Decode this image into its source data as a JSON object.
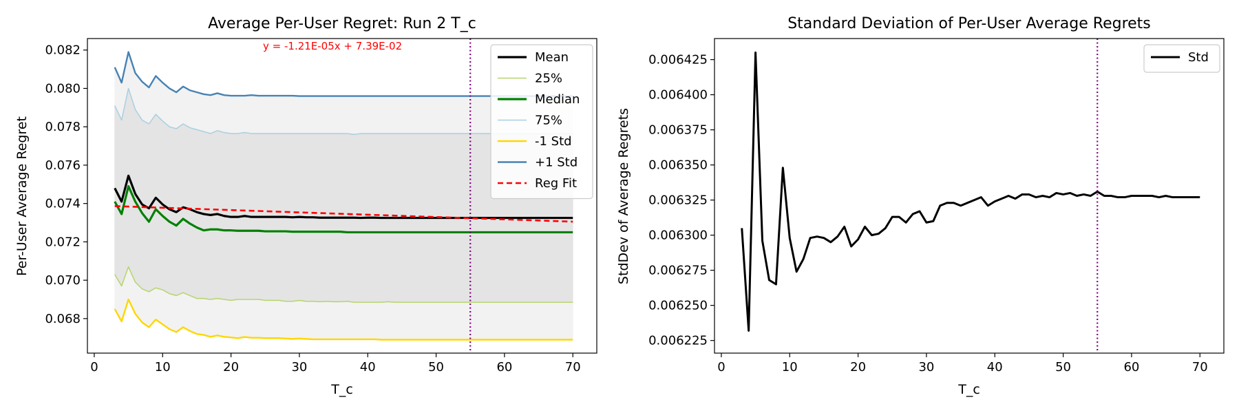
{
  "chart_data": [
    {
      "type": "line",
      "title": "Average Per-User Regret: Run 2 T_c",
      "xlabel": "T_c",
      "ylabel": "Per-User Average Regret",
      "xlim": [
        -1,
        73.5
      ],
      "ylim": [
        0.0662,
        0.0826
      ],
      "xticks": [
        0,
        10,
        20,
        30,
        40,
        50,
        60,
        70
      ],
      "yticks": [
        0.068,
        0.07,
        0.072,
        0.074,
        0.076,
        0.078,
        0.08,
        0.082
      ],
      "ytick_labels": [
        "0.068",
        "0.070",
        "0.072",
        "0.074",
        "0.076",
        "0.078",
        "0.080",
        "0.082"
      ],
      "annotation": "y = -1.21E-05x + 7.39E-02",
      "vline_x": 55,
      "vline_color": "#800080",
      "legend_position": "top-right",
      "x": [
        3,
        4,
        5,
        6,
        7,
        8,
        9,
        10,
        11,
        12,
        13,
        14,
        15,
        16,
        17,
        18,
        19,
        20,
        21,
        22,
        23,
        24,
        25,
        26,
        27,
        28,
        29,
        30,
        31,
        32,
        33,
        34,
        35,
        36,
        37,
        38,
        39,
        40,
        41,
        42,
        43,
        44,
        45,
        46,
        47,
        48,
        49,
        50,
        51,
        52,
        53,
        54,
        55,
        56,
        57,
        58,
        59,
        60,
        61,
        62,
        63,
        64,
        65,
        66,
        67,
        68,
        69,
        70
      ],
      "series": [
        {
          "name": "Mean",
          "color": "#000000",
          "width": 3.2,
          "dash": "",
          "values": [
            0.0748,
            0.0741,
            0.07545,
            0.0745,
            0.07395,
            0.07375,
            0.0743,
            0.07395,
            0.0737,
            0.07355,
            0.0738,
            0.0737,
            0.07355,
            0.07345,
            0.0734,
            0.07345,
            0.07335,
            0.0733,
            0.0733,
            0.07335,
            0.0733,
            0.0733,
            0.0733,
            0.0733,
            0.0733,
            0.0733,
            0.07328,
            0.0733,
            0.07328,
            0.07328,
            0.07326,
            0.07326,
            0.07326,
            0.07326,
            0.07326,
            0.07326,
            0.07325,
            0.07326,
            0.07326,
            0.07325,
            0.07325,
            0.07325,
            0.07325,
            0.07325,
            0.07325,
            0.07325,
            0.07325,
            0.07325,
            0.07325,
            0.07325,
            0.07325,
            0.07325,
            0.07325,
            0.07325,
            0.07325,
            0.07325,
            0.07325,
            0.07325,
            0.07325,
            0.07325,
            0.07325,
            0.07325,
            0.07325,
            0.07325,
            0.07325,
            0.07325,
            0.07325,
            0.07325
          ]
        },
        {
          "name": "25%",
          "color": "#b5d56a",
          "width": 1.5,
          "dash": "",
          "values": [
            0.0703,
            0.0697,
            0.0707,
            0.0699,
            0.06955,
            0.0694,
            0.0696,
            0.0695,
            0.0693,
            0.0692,
            0.06935,
            0.0692,
            0.06905,
            0.06905,
            0.069,
            0.06905,
            0.069,
            0.06895,
            0.069,
            0.069,
            0.069,
            0.069,
            0.06895,
            0.06895,
            0.06895,
            0.0689,
            0.0689,
            0.06895,
            0.0689,
            0.0689,
            0.06888,
            0.0689,
            0.06888,
            0.06888,
            0.0689,
            0.06885,
            0.06885,
            0.06885,
            0.06885,
            0.06885,
            0.06888,
            0.06885,
            0.06885,
            0.06885,
            0.06885,
            0.06885,
            0.06885,
            0.06885,
            0.06885,
            0.06885,
            0.06885,
            0.06885,
            0.06885,
            0.06885,
            0.06885,
            0.06885,
            0.06885,
            0.06885,
            0.06885,
            0.06885,
            0.06885,
            0.06885,
            0.06885,
            0.06885,
            0.06885,
            0.06885,
            0.06885,
            0.06885
          ]
        },
        {
          "name": "Median",
          "color": "#008000",
          "width": 3.2,
          "dash": "",
          "values": [
            0.0741,
            0.07345,
            0.0749,
            0.0741,
            0.0735,
            0.07305,
            0.0737,
            0.07335,
            0.07305,
            0.07285,
            0.0732,
            0.07295,
            0.07275,
            0.0726,
            0.07265,
            0.07265,
            0.0726,
            0.0726,
            0.07258,
            0.07258,
            0.07258,
            0.07258,
            0.07255,
            0.07255,
            0.07255,
            0.07255,
            0.07253,
            0.07253,
            0.07253,
            0.07253,
            0.07253,
            0.07253,
            0.07253,
            0.07253,
            0.0725,
            0.0725,
            0.0725,
            0.0725,
            0.0725,
            0.0725,
            0.0725,
            0.0725,
            0.0725,
            0.0725,
            0.0725,
            0.0725,
            0.0725,
            0.0725,
            0.0725,
            0.0725,
            0.0725,
            0.0725,
            0.0725,
            0.0725,
            0.0725,
            0.0725,
            0.0725,
            0.0725,
            0.0725,
            0.0725,
            0.0725,
            0.0725,
            0.0725,
            0.0725,
            0.0725,
            0.0725,
            0.0725,
            0.0725
          ]
        },
        {
          "name": "75%",
          "color": "#a8cfe0",
          "width": 1.5,
          "dash": "",
          "values": [
            0.0791,
            0.07835,
            0.08,
            0.0789,
            0.07835,
            0.07815,
            0.07865,
            0.0783,
            0.078,
            0.0779,
            0.07815,
            0.07795,
            0.07785,
            0.07775,
            0.07765,
            0.0778,
            0.0777,
            0.07765,
            0.07765,
            0.0777,
            0.07765,
            0.07765,
            0.07765,
            0.07765,
            0.07765,
            0.07765,
            0.07765,
            0.07765,
            0.07765,
            0.07765,
            0.07765,
            0.07765,
            0.07765,
            0.07765,
            0.07765,
            0.0776,
            0.07765,
            0.07765,
            0.07765,
            0.07765,
            0.07765,
            0.07765,
            0.07765,
            0.07765,
            0.07765,
            0.07765,
            0.07765,
            0.07765,
            0.07765,
            0.07765,
            0.07765,
            0.07765,
            0.07765,
            0.07765,
            0.07765,
            0.07765,
            0.07765,
            0.07765,
            0.07765,
            0.07765,
            0.07765,
            0.07765,
            0.07765,
            0.07765,
            0.07765,
            0.07765,
            0.07765,
            0.07765
          ]
        },
        {
          "name": "-1 Std",
          "color": "#ffd700",
          "width": 2.4,
          "dash": "",
          "values": [
            0.0685,
            0.06785,
            0.069,
            0.06825,
            0.0678,
            0.06755,
            0.06795,
            0.0677,
            0.06745,
            0.0673,
            0.06755,
            0.06735,
            0.0672,
            0.06715,
            0.06705,
            0.06712,
            0.06705,
            0.06702,
            0.06698,
            0.06704,
            0.067,
            0.067,
            0.06698,
            0.06698,
            0.06698,
            0.06696,
            0.06694,
            0.06696,
            0.06694,
            0.06692,
            0.06692,
            0.06692,
            0.06692,
            0.06692,
            0.06692,
            0.06692,
            0.06692,
            0.06692,
            0.06692,
            0.0669,
            0.0669,
            0.0669,
            0.0669,
            0.0669,
            0.0669,
            0.0669,
            0.0669,
            0.0669,
            0.0669,
            0.0669,
            0.0669,
            0.0669,
            0.0669,
            0.0669,
            0.0669,
            0.0669,
            0.0669,
            0.0669,
            0.0669,
            0.0669,
            0.0669,
            0.0669,
            0.0669,
            0.0669,
            0.0669,
            0.0669,
            0.0669,
            0.0669
          ]
        },
        {
          "name": "+1 Std",
          "color": "#4682b4",
          "width": 2.4,
          "dash": "",
          "values": [
            0.0811,
            0.0803,
            0.0819,
            0.0808,
            0.08035,
            0.08005,
            0.08065,
            0.0803,
            0.08,
            0.0798,
            0.0801,
            0.0799,
            0.0798,
            0.0797,
            0.07965,
            0.07975,
            0.07965,
            0.07962,
            0.07962,
            0.07962,
            0.07965,
            0.07962,
            0.07962,
            0.07962,
            0.07962,
            0.07962,
            0.07962,
            0.0796,
            0.0796,
            0.0796,
            0.0796,
            0.0796,
            0.0796,
            0.0796,
            0.0796,
            0.0796,
            0.0796,
            0.0796,
            0.0796,
            0.0796,
            0.0796,
            0.0796,
            0.0796,
            0.0796,
            0.0796,
            0.0796,
            0.0796,
            0.0796,
            0.0796,
            0.0796,
            0.0796,
            0.0796,
            0.0796,
            0.0796,
            0.0796,
            0.0796,
            0.0796,
            0.0796,
            0.0796,
            0.0796,
            0.0796,
            0.0796,
            0.0796,
            0.0796,
            0.0796,
            0.0796,
            0.0796,
            0.0796
          ]
        },
        {
          "name": "Reg Fit",
          "color": "#ff0000",
          "width": 2.6,
          "dash": "8,5",
          "values": [
            0.073864,
            0.073852,
            0.07384,
            0.073827,
            0.073815,
            0.073803,
            0.073791,
            0.073779,
            0.073767,
            0.073755,
            0.073743,
            0.073731,
            0.073719,
            0.073706,
            0.073694,
            0.073682,
            0.07367,
            0.073658,
            0.073646,
            0.073634,
            0.073622,
            0.07361,
            0.073598,
            0.073585,
            0.073573,
            0.073561,
            0.073549,
            0.073537,
            0.073525,
            0.073513,
            0.073501,
            0.073489,
            0.073477,
            0.073464,
            0.073452,
            0.07344,
            0.073428,
            0.073416,
            0.073404,
            0.073392,
            0.07338,
            0.073368,
            0.073356,
            0.073343,
            0.073331,
            0.073319,
            0.073307,
            0.073295,
            0.073283,
            0.073271,
            0.073259,
            0.073247,
            0.073235,
            0.073222,
            0.07321,
            0.073198,
            0.073186,
            0.073174,
            0.073162,
            0.07315,
            0.073138,
            0.073126,
            0.073114,
            0.073101,
            0.073089,
            0.073077,
            0.073065,
            0.073053
          ]
        }
      ],
      "fills": [
        {
          "between": [
            "-1 Std",
            "+1 Std"
          ],
          "color": "#f2f2f2"
        },
        {
          "between": [
            "25%",
            "75%"
          ],
          "color": "#e4e4e4"
        }
      ]
    },
    {
      "type": "line",
      "title": "Standard Deviation of Per-User Average Regrets",
      "xlabel": "T_c",
      "ylabel": "StdDev of Average Regrets",
      "xlim": [
        -1,
        73.5
      ],
      "ylim": [
        0.006216,
        0.00644
      ],
      "xticks": [
        0,
        10,
        20,
        30,
        40,
        50,
        60,
        70
      ],
      "yticks": [
        0.006225,
        0.00625,
        0.006275,
        0.0063,
        0.006325,
        0.00635,
        0.006375,
        0.0064,
        0.006425
      ],
      "ytick_labels": [
        "0.006225",
        "0.006250",
        "0.006275",
        "0.006300",
        "0.006325",
        "0.006350",
        "0.006375",
        "0.006400",
        "0.006425"
      ],
      "vline_x": 55,
      "vline_color": "#800080",
      "legend_position": "top-right",
      "x": [
        3,
        4,
        5,
        6,
        7,
        8,
        9,
        10,
        11,
        12,
        13,
        14,
        15,
        16,
        17,
        18,
        19,
        20,
        21,
        22,
        23,
        24,
        25,
        26,
        27,
        28,
        29,
        30,
        31,
        32,
        33,
        34,
        35,
        36,
        37,
        38,
        39,
        40,
        41,
        42,
        43,
        44,
        45,
        46,
        47,
        48,
        49,
        50,
        51,
        52,
        53,
        54,
        55,
        56,
        57,
        58,
        59,
        60,
        61,
        62,
        63,
        64,
        65,
        66,
        67,
        68,
        69,
        70
      ],
      "series": [
        {
          "name": "Std",
          "color": "#000000",
          "width": 3.0,
          "dash": "",
          "values": [
            0.006305,
            0.006232,
            0.00643,
            0.006296,
            0.006268,
            0.006265,
            0.006348,
            0.006298,
            0.006274,
            0.006283,
            0.006298,
            0.006299,
            0.006298,
            0.006295,
            0.006299,
            0.006306,
            0.006292,
            0.006297,
            0.006306,
            0.0063,
            0.006301,
            0.006305,
            0.006313,
            0.006313,
            0.006309,
            0.006315,
            0.006317,
            0.006309,
            0.00631,
            0.006321,
            0.006323,
            0.006323,
            0.006321,
            0.006323,
            0.006325,
            0.006327,
            0.006321,
            0.006324,
            0.006326,
            0.006328,
            0.006326,
            0.006329,
            0.006329,
            0.006327,
            0.006328,
            0.006327,
            0.00633,
            0.006329,
            0.00633,
            0.006328,
            0.006329,
            0.006328,
            0.006331,
            0.006328,
            0.006328,
            0.006327,
            0.006327,
            0.006328,
            0.006328,
            0.006328,
            0.006328,
            0.006327,
            0.006328,
            0.006327,
            0.006327,
            0.006327,
            0.006327,
            0.006327
          ]
        }
      ]
    }
  ]
}
